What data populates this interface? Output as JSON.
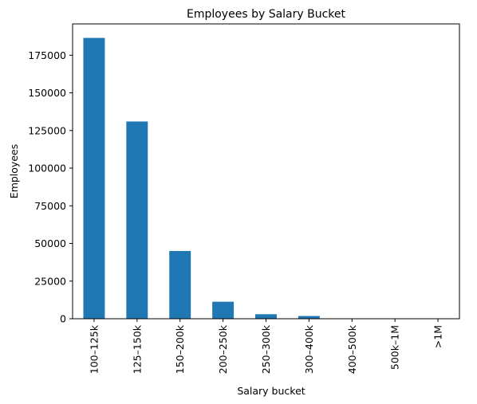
{
  "chart_data": {
    "type": "bar",
    "title": "Employees by Salary Bucket",
    "xlabel": "Salary bucket",
    "ylabel": "Employees",
    "categories": [
      "100–125k",
      "125–150k",
      "150–200k",
      "200–250k",
      "250–300k",
      "300–400k",
      "400–500k",
      "500k–1M",
      ">1M"
    ],
    "values": [
      186500,
      131000,
      45000,
      11300,
      3000,
      1800,
      0,
      0,
      0
    ],
    "ylim": [
      0,
      195800
    ],
    "yticks": [
      0,
      25000,
      50000,
      75000,
      100000,
      125000,
      150000,
      175000
    ],
    "ytick_labels": [
      "0",
      "25000",
      "50000",
      "75000",
      "100000",
      "125000",
      "150000",
      "175000"
    ],
    "bar_color": "#1f77b4",
    "grid": false,
    "legend": "none"
  }
}
